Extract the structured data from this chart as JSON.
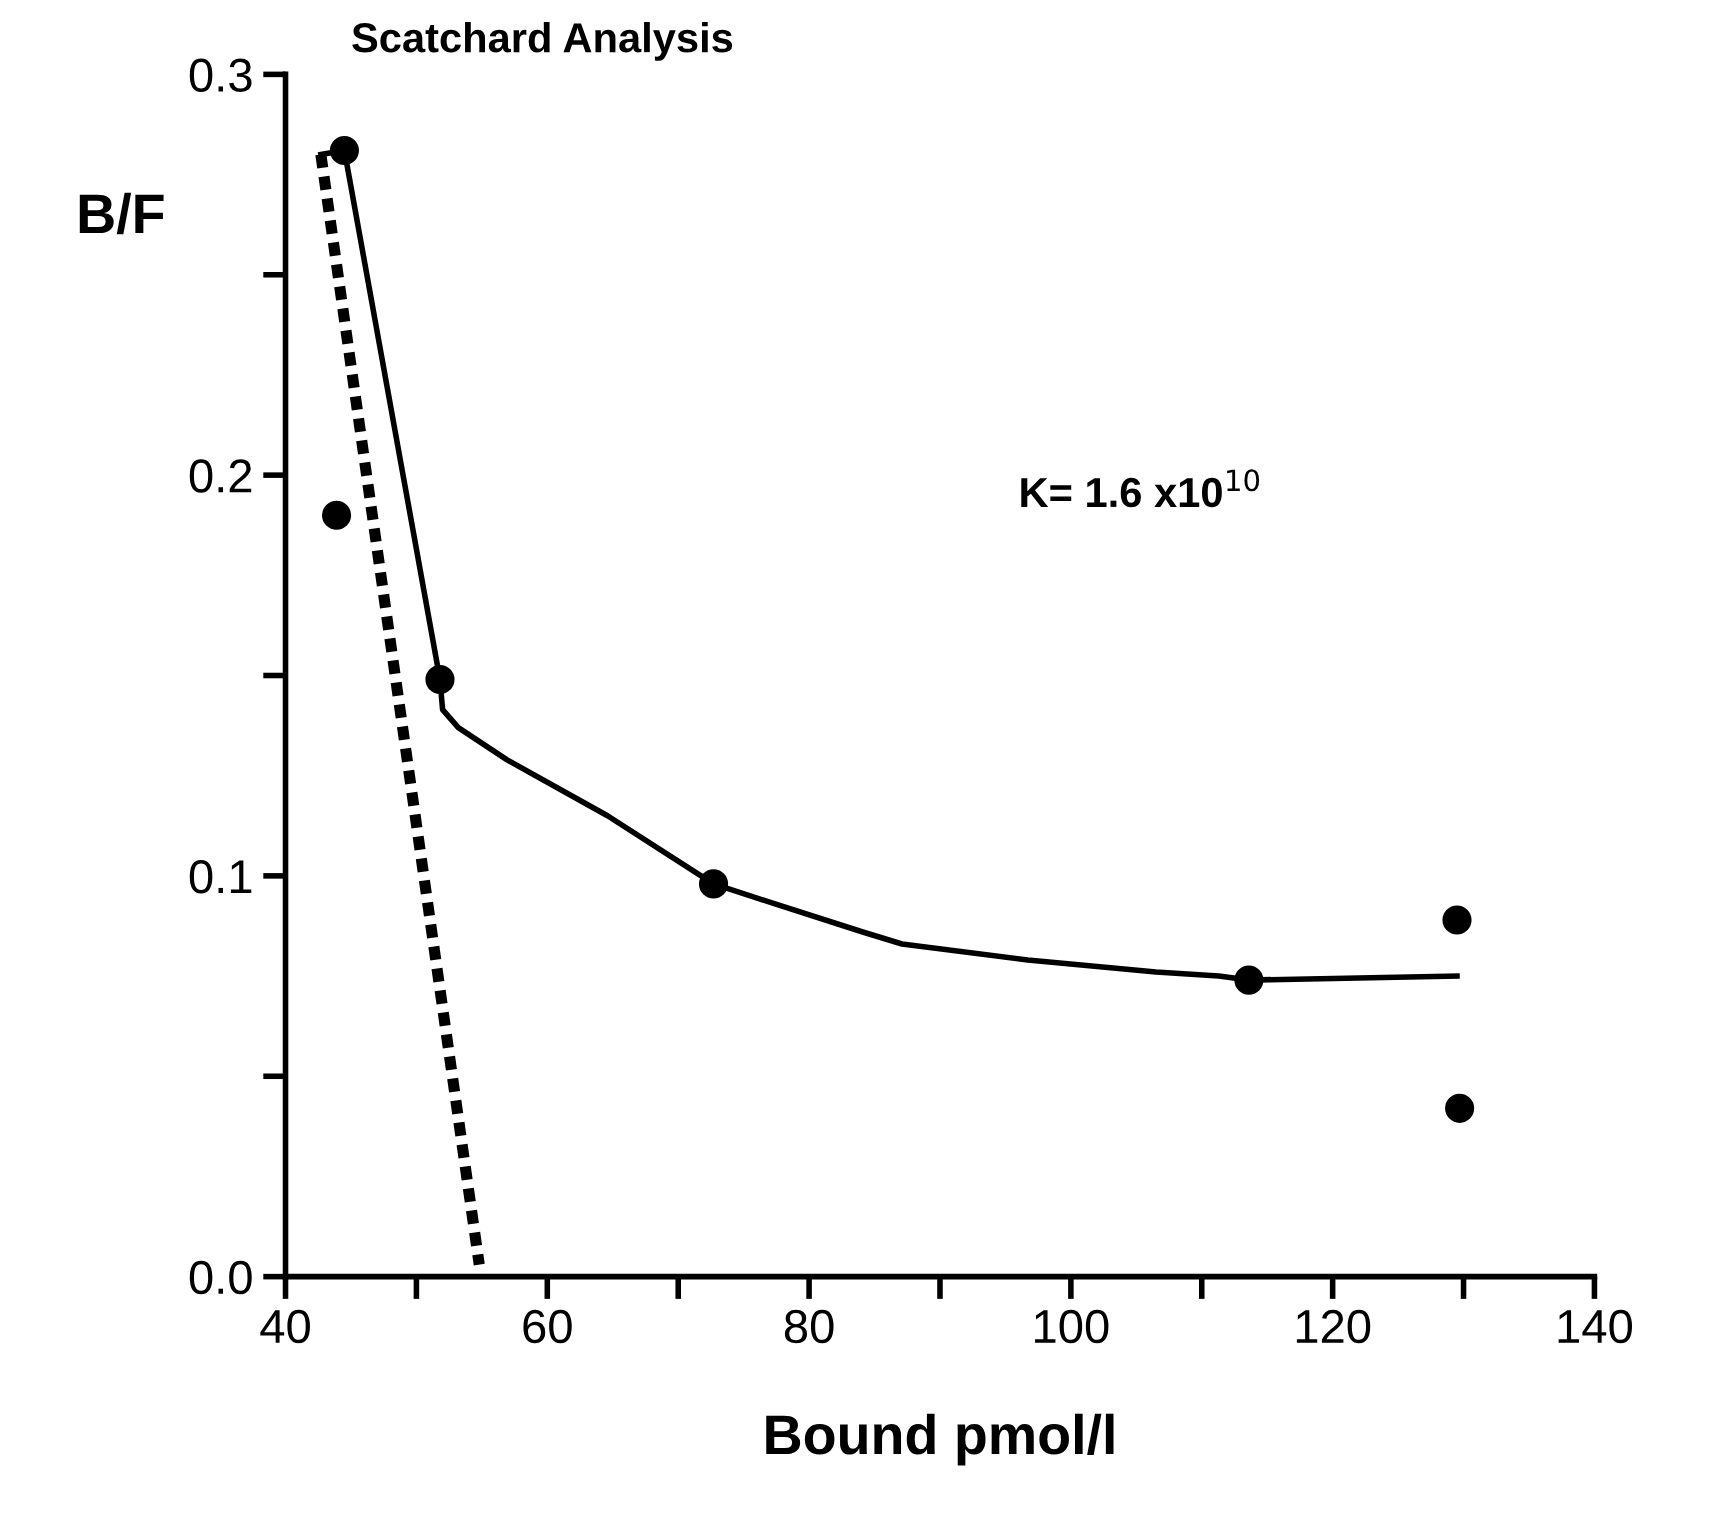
{
  "chart_data": {
    "type": "scatter",
    "title": "Scatchard Analysis",
    "xlabel": "Bound pmol/l",
    "ylabel": "B/F",
    "annotations": [
      "K= 1.6 x10$^{10}$"
    ],
    "xlim": [
      40,
      140
    ],
    "ylim": [
      0,
      0.3
    ],
    "xticks": [
      40,
      {
        "value": 50,
        "label": null
      },
      60,
      {
        "value": 70,
        "label": null
      },
      80,
      {
        "value": 90,
        "label": null
      },
      100,
      {
        "value": 110,
        "label": null
      },
      120,
      {
        "value": 130,
        "label": null
      },
      140
    ],
    "yticks": [
      {
        "value": 0,
        "label": "0.0"
      },
      {
        "value": 0.05,
        "label": null
      },
      0.1,
      {
        "value": 0.15,
        "label": null
      },
      0.2,
      {
        "value": 0.25,
        "label": null
      },
      0.3
    ],
    "grid": false,
    "legend": false,
    "series": [
      {
        "color": "#000000",
        "marker": "circle",
        "x": [
          44.5,
          43.9,
          51.8,
          72.7,
          113.6,
          129.5,
          129.7
        ],
        "values": [
          0.281,
          0.19,
          0.149,
          0.098,
          0.074,
          0.089,
          0.042
        ]
      },
      {
        "type": "line",
        "color": "#000000",
        "marker": "none",
        "line_style": "solid",
        "x": [
          42.7,
          44.5,
          51.8,
          52.0,
          53.2,
          56.9,
          64.6,
          72.7,
          77.4,
          84.1,
          87.1,
          96.7,
          106.5,
          111.3,
          113.6,
          129.5
        ],
        "values": [
          0.28,
          0.281,
          0.149,
          0.1415,
          0.137,
          0.129,
          0.115,
          0.098,
          0.093,
          0.086,
          0.083,
          0.079,
          0.076,
          0.075,
          0.074,
          0.075
        ]
      },
      {
        "type": "line",
        "color": "#000000",
        "marker": "none",
        "line_style": "dotted",
        "x": [
          42.7,
          54.8
        ],
        "values": [
          0.28,
          0.003
        ]
      }
    ]
  }
}
